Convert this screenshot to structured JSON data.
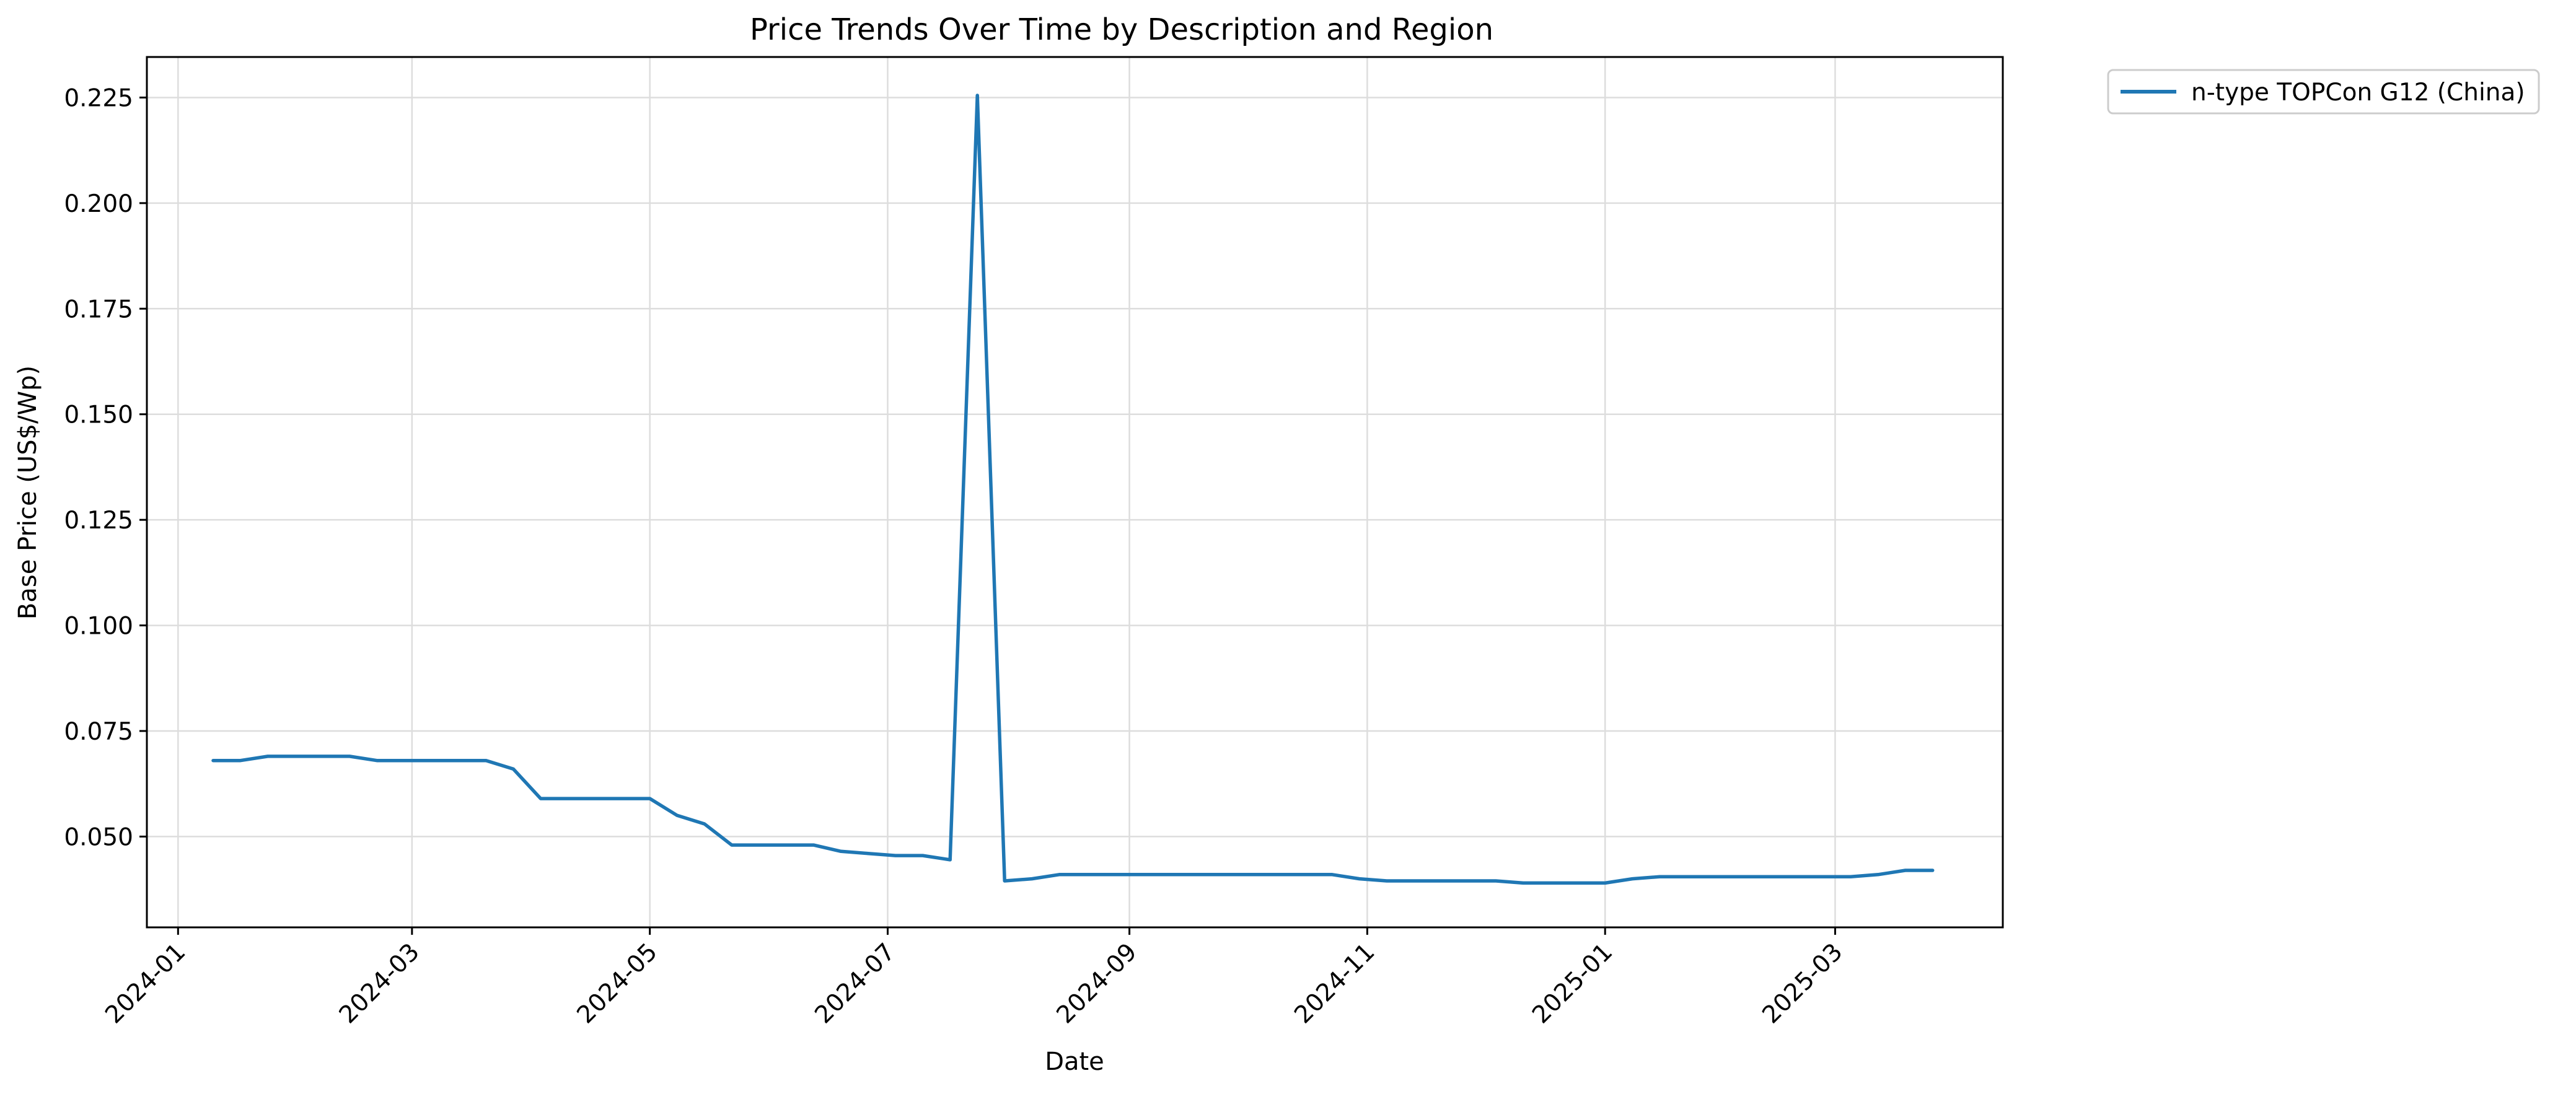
{
  "chart_data": {
    "type": "line",
    "title": "Price Trends Over Time by Description and Region",
    "xlabel": "Date",
    "ylabel": "Base Price (US$/Wp)",
    "xlim": [
      "2023-12-24",
      "2025-04-13"
    ],
    "ylim": [
      0.0285,
      0.2346
    ],
    "x_ticks": [
      "2024-01-01",
      "2024-03-01",
      "2024-05-01",
      "2024-07-01",
      "2024-09-01",
      "2024-11-01",
      "2025-01-01",
      "2025-03-01"
    ],
    "x_tick_labels": [
      "2024-01",
      "2024-03",
      "2024-05",
      "2024-07",
      "2024-09",
      "2024-11",
      "2025-01",
      "2025-03"
    ],
    "y_ticks": [
      0.05,
      0.075,
      0.1,
      0.125,
      0.15,
      0.175,
      0.2,
      0.225
    ],
    "y_tick_labels": [
      "0.050",
      "0.075",
      "0.100",
      "0.125",
      "0.150",
      "0.175",
      "0.200",
      "0.225"
    ],
    "grid": true,
    "legend_position": "outside-top-right",
    "color": "#1f77b4",
    "series": [
      {
        "name": "n-type TOPCon G12 (China)",
        "x": [
          "2024-01-10",
          "2024-01-17",
          "2024-01-24",
          "2024-01-31",
          "2024-02-07",
          "2024-02-14",
          "2024-02-21",
          "2024-02-28",
          "2024-03-06",
          "2024-03-13",
          "2024-03-20",
          "2024-03-27",
          "2024-04-03",
          "2024-04-10",
          "2024-04-17",
          "2024-04-24",
          "2024-05-01",
          "2024-05-08",
          "2024-05-15",
          "2024-05-22",
          "2024-05-29",
          "2024-06-05",
          "2024-06-12",
          "2024-06-19",
          "2024-06-26",
          "2024-07-03",
          "2024-07-10",
          "2024-07-17",
          "2024-07-24",
          "2024-07-31",
          "2024-08-07",
          "2024-08-14",
          "2024-08-21",
          "2024-08-28",
          "2024-09-04",
          "2024-09-11",
          "2024-09-18",
          "2024-09-25",
          "2024-10-02",
          "2024-10-09",
          "2024-10-16",
          "2024-10-23",
          "2024-10-30",
          "2024-11-06",
          "2024-11-13",
          "2024-11-20",
          "2024-11-27",
          "2024-12-04",
          "2024-12-11",
          "2024-12-18",
          "2024-12-25",
          "2025-01-01",
          "2025-01-08",
          "2025-01-15",
          "2025-01-22",
          "2025-01-29",
          "2025-02-05",
          "2025-02-12",
          "2025-02-19",
          "2025-02-26",
          "2025-03-05",
          "2025-03-12",
          "2025-03-19",
          "2025-03-26"
        ],
        "y": [
          0.068,
          0.068,
          0.069,
          0.069,
          0.069,
          0.069,
          0.068,
          0.068,
          0.068,
          0.068,
          0.068,
          0.066,
          0.059,
          0.059,
          0.059,
          0.059,
          0.059,
          0.055,
          0.053,
          0.048,
          0.048,
          0.048,
          0.048,
          0.0465,
          0.046,
          0.0455,
          0.0455,
          0.0445,
          0.2255,
          0.0395,
          0.04,
          0.041,
          0.041,
          0.041,
          0.041,
          0.041,
          0.041,
          0.041,
          0.041,
          0.041,
          0.041,
          0.041,
          0.04,
          0.0395,
          0.0395,
          0.0395,
          0.0395,
          0.0395,
          0.039,
          0.039,
          0.039,
          0.039,
          0.04,
          0.0405,
          0.0405,
          0.0405,
          0.0405,
          0.0405,
          0.0405,
          0.0405,
          0.0405,
          0.041,
          0.042,
          0.042
        ]
      }
    ]
  }
}
